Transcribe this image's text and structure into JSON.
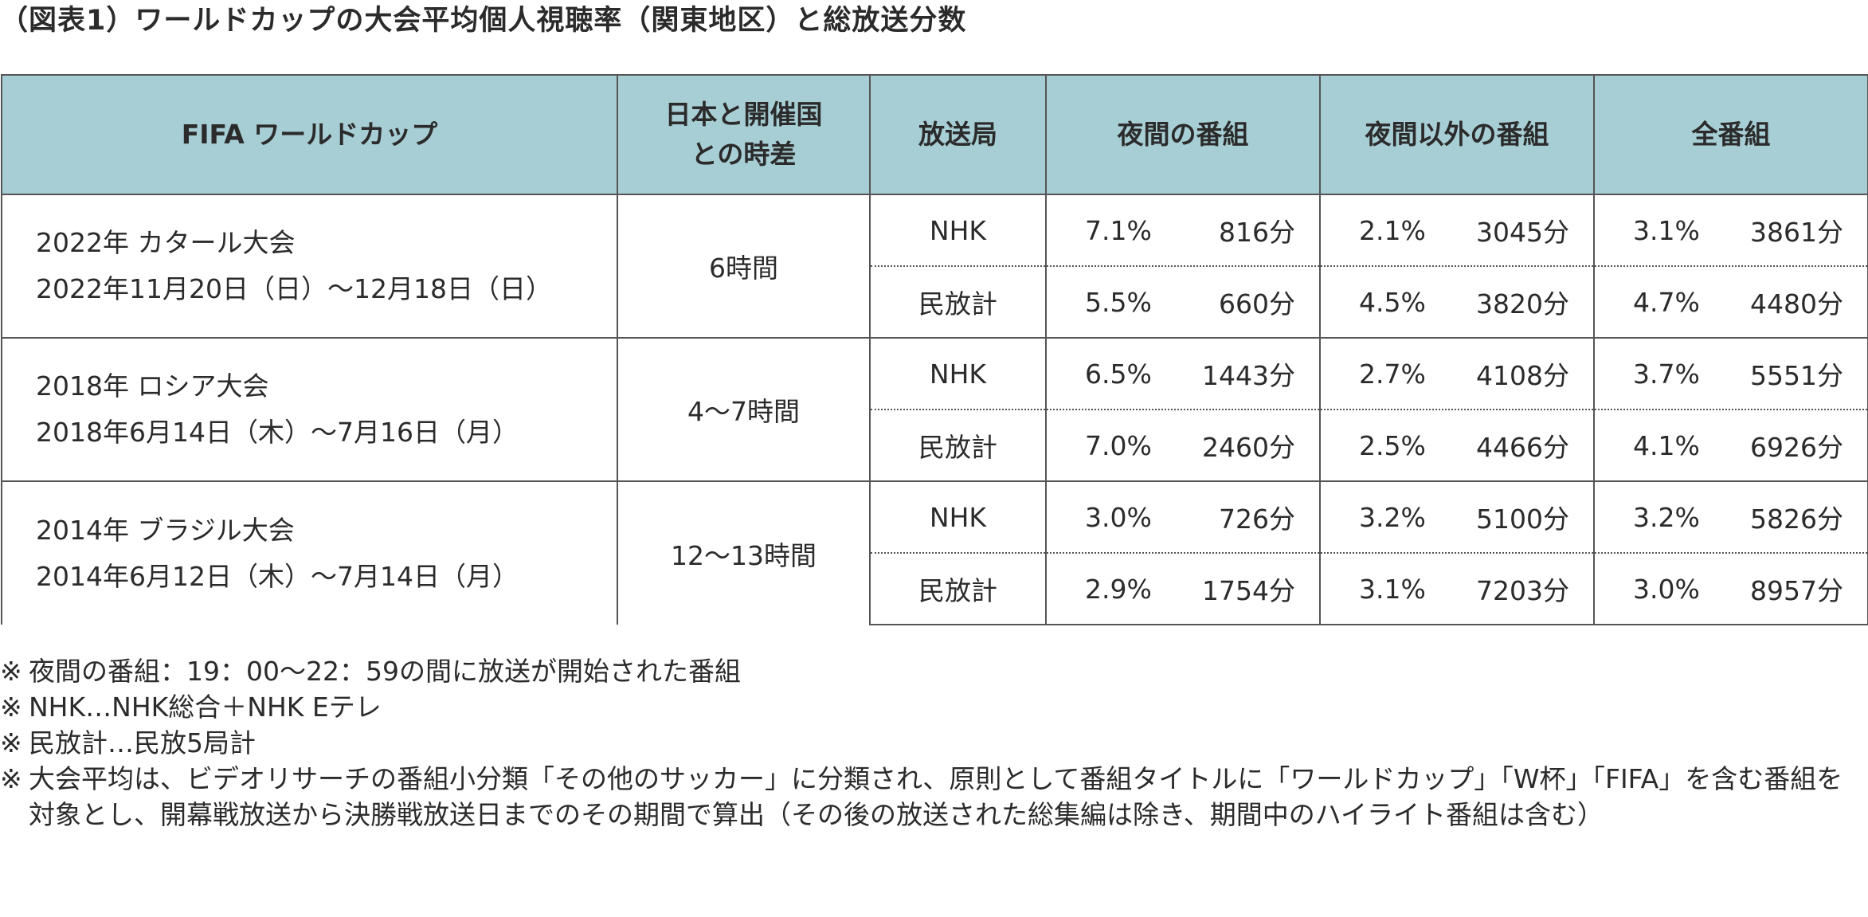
{
  "title": "（図表1）ワールドカップの大会平均個人視聴率（関東地区）と総放送分数",
  "headers": {
    "event": "FIFA ワールドカップ",
    "timediff": [
      "日本と開催国",
      "との時差"
    ],
    "station": "放送局",
    "night": "夜間の番組",
    "non_night": "夜間以外の番組",
    "all": "全番組"
  },
  "rows": [
    {
      "event_line1": "2022年 カタール大会",
      "event_line2": "2022年11月20日（日）〜12月18日（日）",
      "timediff": "6時間",
      "stations": [
        {
          "name": "NHK",
          "night_pct": "7.1%",
          "night_min": "816分",
          "non_night_pct": "2.1%",
          "non_night_min": "3045分",
          "all_pct": "3.1%",
          "all_min": "3861分"
        },
        {
          "name": "民放計",
          "night_pct": "5.5%",
          "night_min": "660分",
          "non_night_pct": "4.5%",
          "non_night_min": "3820分",
          "all_pct": "4.7%",
          "all_min": "4480分"
        }
      ]
    },
    {
      "event_line1": "2018年 ロシア大会",
      "event_line2": "2018年6月14日（木）〜7月16日（月）",
      "timediff": "4〜7時間",
      "stations": [
        {
          "name": "NHK",
          "night_pct": "6.5%",
          "night_min": "1443分",
          "non_night_pct": "2.7%",
          "non_night_min": "4108分",
          "all_pct": "3.7%",
          "all_min": "5551分"
        },
        {
          "name": "民放計",
          "night_pct": "7.0%",
          "night_min": "2460分",
          "non_night_pct": "2.5%",
          "non_night_min": "4466分",
          "all_pct": "4.1%",
          "all_min": "6926分"
        }
      ]
    },
    {
      "event_line1": "2014年 ブラジル大会",
      "event_line2": "2014年6月12日（木）〜7月14日（月）",
      "timediff": "12〜13時間",
      "stations": [
        {
          "name": "NHK",
          "night_pct": "3.0%",
          "night_min": "726分",
          "non_night_pct": "3.2%",
          "non_night_min": "5100分",
          "all_pct": "3.2%",
          "all_min": "5826分"
        },
        {
          "name": "民放計",
          "night_pct": "2.9%",
          "night_min": "1754分",
          "non_night_pct": "3.1%",
          "non_night_min": "7203分",
          "all_pct": "3.0%",
          "all_min": "8957分"
        }
      ]
    }
  ],
  "notes": [
    {
      "mark": "※",
      "text": "夜間の番組：19：00〜22：59の間に放送が開始された番組"
    },
    {
      "mark": "※",
      "text": "NHK…NHK総合＋NHK Eテレ"
    },
    {
      "mark": "※",
      "text": "民放計…民放5局計"
    },
    {
      "mark": "※",
      "text": "大会平均は、ビデオリサーチの番組小分類「その他のサッカー」に分類され、原則として番組タイトルに「ワールドカップ」「W杯」「FIFA」を含む番組を対象とし、開幕戦放送から決勝戦放送日までのその期間で算出（その後の放送された総集編は除き、期間中のハイライト番組は含む）"
    }
  ]
}
